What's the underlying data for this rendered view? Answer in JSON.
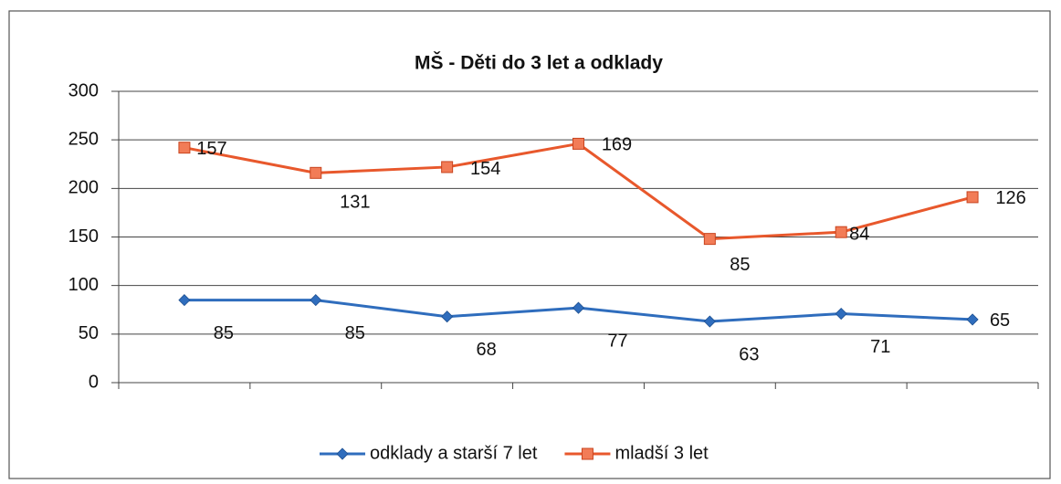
{
  "chart_data": {
    "type": "stacked-line",
    "title": "MŠ - Děti do 3 let a odklady",
    "categories": [
      null,
      null,
      null,
      null,
      null,
      null,
      null
    ],
    "series": [
      {
        "name": "odklady a starší 7 let",
        "color": "#2f6dbd",
        "marker": "diamond",
        "values": [
          85,
          85,
          68,
          77,
          63,
          71,
          65
        ]
      },
      {
        "name": "mladší 3 let",
        "color": "#e8582c",
        "marker": "square",
        "values": [
          157,
          131,
          154,
          169,
          85,
          84,
          126
        ]
      }
    ],
    "ylim": [
      0,
      300
    ],
    "yticks": [
      0,
      50,
      100,
      150,
      200,
      250,
      300
    ],
    "grid": true,
    "legend": "bottom"
  }
}
